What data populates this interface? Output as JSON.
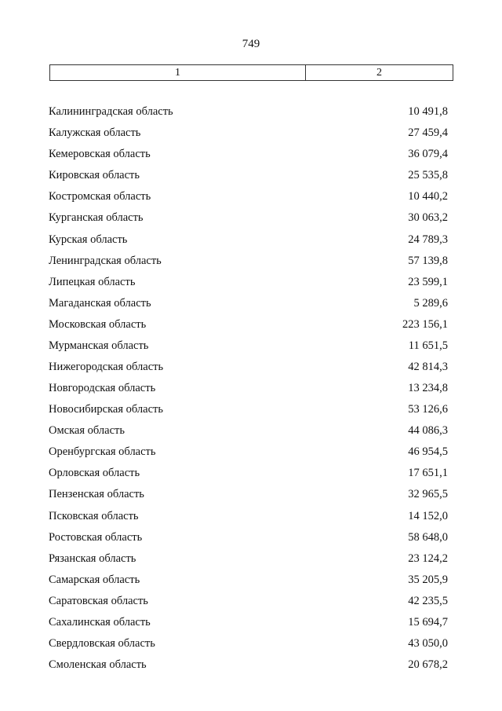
{
  "page_number": "749",
  "header": {
    "col1": "1",
    "col2": "2"
  },
  "rows": [
    {
      "name": "Калининградская область",
      "value": "10 491,8"
    },
    {
      "name": "Калужская область",
      "value": "27 459,4"
    },
    {
      "name": "Кемеровская область",
      "value": "36 079,4"
    },
    {
      "name": "Кировская область",
      "value": "25 535,8"
    },
    {
      "name": "Костромская область",
      "value": "10 440,2"
    },
    {
      "name": "Курганская область",
      "value": "30 063,2"
    },
    {
      "name": "Курская область",
      "value": "24 789,3"
    },
    {
      "name": "Ленинградская область",
      "value": "57 139,8"
    },
    {
      "name": "Липецкая область",
      "value": "23 599,1"
    },
    {
      "name": "Магаданская область",
      "value": "5 289,6"
    },
    {
      "name": "Московская область",
      "value": "223 156,1"
    },
    {
      "name": "Мурманская область",
      "value": "11 651,5"
    },
    {
      "name": "Нижегородская область",
      "value": "42 814,3"
    },
    {
      "name": "Новгородская область",
      "value": "13 234,8"
    },
    {
      "name": "Новосибирская область",
      "value": "53 126,6"
    },
    {
      "name": "Омская область",
      "value": "44 086,3"
    },
    {
      "name": "Оренбургская область",
      "value": "46 954,5"
    },
    {
      "name": "Орловская область",
      "value": "17 651,1"
    },
    {
      "name": "Пензенская область",
      "value": "32 965,5"
    },
    {
      "name": "Псковская область",
      "value": "14 152,0"
    },
    {
      "name": "Ростовская область",
      "value": "58 648,0"
    },
    {
      "name": "Рязанская область",
      "value": "23 124,2"
    },
    {
      "name": "Самарская область",
      "value": "35 205,9"
    },
    {
      "name": "Саратовская область",
      "value": "42 235,5"
    },
    {
      "name": "Сахалинская область",
      "value": "15 694,7"
    },
    {
      "name": "Свердловская область",
      "value": "43 050,0"
    },
    {
      "name": "Смоленская область",
      "value": "20 678,2"
    }
  ]
}
